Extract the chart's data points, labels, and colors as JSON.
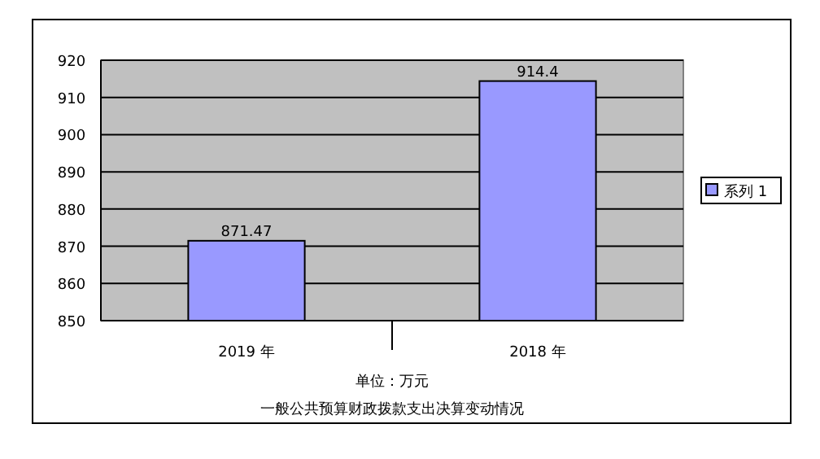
{
  "chart_data": {
    "type": "bar",
    "title": "一般公共预算财政拨款支出决算变动情况",
    "xlabel": "单位：万元",
    "categories": [
      "2019 年",
      "2018 年"
    ],
    "series": [
      {
        "name": "系列 1",
        "color": "#9999ff",
        "values": [
          871.47,
          914.4
        ]
      }
    ],
    "ylim": [
      850,
      920
    ],
    "yticks": [
      850,
      860,
      870,
      880,
      890,
      900,
      910,
      920
    ],
    "grid": "y",
    "data_labels": true,
    "legend": "right"
  }
}
